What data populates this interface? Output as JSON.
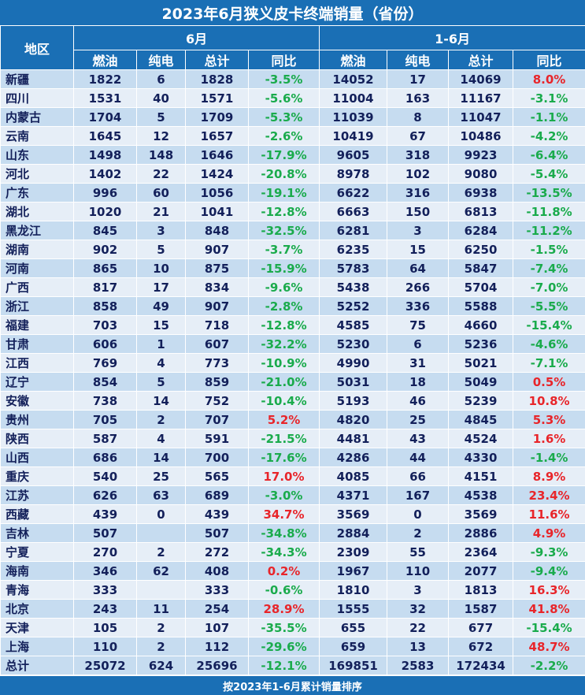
{
  "title": "2023年6月狭义皮卡终端销量（省份）",
  "header": {
    "region": "地区",
    "june": "6月",
    "ytd": "1-6月",
    "cols": [
      "燃油",
      "纯电",
      "总计",
      "同比",
      "燃油",
      "纯电",
      "总计",
      "同比"
    ]
  },
  "colors": {
    "header_bg": "#1a6fb5",
    "band_dark": "#c6dcf0",
    "band_light": "#e6eef7",
    "text": "#13205a",
    "negative": "#1aab4c",
    "positive": "#e8252a"
  },
  "rows": [
    {
      "region": "新疆",
      "jun_fuel": "1822",
      "jun_ev": "6",
      "jun_total": "1828",
      "jun_yoy": "-3.5%",
      "ytd_fuel": "14052",
      "ytd_ev": "17",
      "ytd_total": "14069",
      "ytd_yoy": "8.0%"
    },
    {
      "region": "四川",
      "jun_fuel": "1531",
      "jun_ev": "40",
      "jun_total": "1571",
      "jun_yoy": "-5.6%",
      "ytd_fuel": "11004",
      "ytd_ev": "163",
      "ytd_total": "11167",
      "ytd_yoy": "-3.1%"
    },
    {
      "region": "内蒙古",
      "jun_fuel": "1704",
      "jun_ev": "5",
      "jun_total": "1709",
      "jun_yoy": "-5.3%",
      "ytd_fuel": "11039",
      "ytd_ev": "8",
      "ytd_total": "11047",
      "ytd_yoy": "-1.1%"
    },
    {
      "region": "云南",
      "jun_fuel": "1645",
      "jun_ev": "12",
      "jun_total": "1657",
      "jun_yoy": "-2.6%",
      "ytd_fuel": "10419",
      "ytd_ev": "67",
      "ytd_total": "10486",
      "ytd_yoy": "-4.2%"
    },
    {
      "region": "山东",
      "jun_fuel": "1498",
      "jun_ev": "148",
      "jun_total": "1646",
      "jun_yoy": "-17.9%",
      "ytd_fuel": "9605",
      "ytd_ev": "318",
      "ytd_total": "9923",
      "ytd_yoy": "-6.4%"
    },
    {
      "region": "河北",
      "jun_fuel": "1402",
      "jun_ev": "22",
      "jun_total": "1424",
      "jun_yoy": "-20.8%",
      "ytd_fuel": "8978",
      "ytd_ev": "102",
      "ytd_total": "9080",
      "ytd_yoy": "-5.4%"
    },
    {
      "region": "广东",
      "jun_fuel": "996",
      "jun_ev": "60",
      "jun_total": "1056",
      "jun_yoy": "-19.1%",
      "ytd_fuel": "6622",
      "ytd_ev": "316",
      "ytd_total": "6938",
      "ytd_yoy": "-13.5%"
    },
    {
      "region": "湖北",
      "jun_fuel": "1020",
      "jun_ev": "21",
      "jun_total": "1041",
      "jun_yoy": "-12.8%",
      "ytd_fuel": "6663",
      "ytd_ev": "150",
      "ytd_total": "6813",
      "ytd_yoy": "-11.8%"
    },
    {
      "region": "黑龙江",
      "jun_fuel": "845",
      "jun_ev": "3",
      "jun_total": "848",
      "jun_yoy": "-32.5%",
      "ytd_fuel": "6281",
      "ytd_ev": "3",
      "ytd_total": "6284",
      "ytd_yoy": "-11.2%"
    },
    {
      "region": "湖南",
      "jun_fuel": "902",
      "jun_ev": "5",
      "jun_total": "907",
      "jun_yoy": "-3.7%",
      "ytd_fuel": "6235",
      "ytd_ev": "15",
      "ytd_total": "6250",
      "ytd_yoy": "-1.5%"
    },
    {
      "region": "河南",
      "jun_fuel": "865",
      "jun_ev": "10",
      "jun_total": "875",
      "jun_yoy": "-15.9%",
      "ytd_fuel": "5783",
      "ytd_ev": "64",
      "ytd_total": "5847",
      "ytd_yoy": "-7.4%"
    },
    {
      "region": "广西",
      "jun_fuel": "817",
      "jun_ev": "17",
      "jun_total": "834",
      "jun_yoy": "-9.6%",
      "ytd_fuel": "5438",
      "ytd_ev": "266",
      "ytd_total": "5704",
      "ytd_yoy": "-7.0%"
    },
    {
      "region": "浙江",
      "jun_fuel": "858",
      "jun_ev": "49",
      "jun_total": "907",
      "jun_yoy": "-2.8%",
      "ytd_fuel": "5252",
      "ytd_ev": "336",
      "ytd_total": "5588",
      "ytd_yoy": "-5.5%"
    },
    {
      "region": "福建",
      "jun_fuel": "703",
      "jun_ev": "15",
      "jun_total": "718",
      "jun_yoy": "-12.8%",
      "ytd_fuel": "4585",
      "ytd_ev": "75",
      "ytd_total": "4660",
      "ytd_yoy": "-15.4%"
    },
    {
      "region": "甘肃",
      "jun_fuel": "606",
      "jun_ev": "1",
      "jun_total": "607",
      "jun_yoy": "-32.2%",
      "ytd_fuel": "5230",
      "ytd_ev": "6",
      "ytd_total": "5236",
      "ytd_yoy": "-4.6%"
    },
    {
      "region": "江西",
      "jun_fuel": "769",
      "jun_ev": "4",
      "jun_total": "773",
      "jun_yoy": "-10.9%",
      "ytd_fuel": "4990",
      "ytd_ev": "31",
      "ytd_total": "5021",
      "ytd_yoy": "-7.1%"
    },
    {
      "region": "辽宁",
      "jun_fuel": "854",
      "jun_ev": "5",
      "jun_total": "859",
      "jun_yoy": "-21.0%",
      "ytd_fuel": "5031",
      "ytd_ev": "18",
      "ytd_total": "5049",
      "ytd_yoy": "0.5%"
    },
    {
      "region": "安徽",
      "jun_fuel": "738",
      "jun_ev": "14",
      "jun_total": "752",
      "jun_yoy": "-10.4%",
      "ytd_fuel": "5193",
      "ytd_ev": "46",
      "ytd_total": "5239",
      "ytd_yoy": "10.8%"
    },
    {
      "region": "贵州",
      "jun_fuel": "705",
      "jun_ev": "2",
      "jun_total": "707",
      "jun_yoy": "5.2%",
      "ytd_fuel": "4820",
      "ytd_ev": "25",
      "ytd_total": "4845",
      "ytd_yoy": "5.3%"
    },
    {
      "region": "陕西",
      "jun_fuel": "587",
      "jun_ev": "4",
      "jun_total": "591",
      "jun_yoy": "-21.5%",
      "ytd_fuel": "4481",
      "ytd_ev": "43",
      "ytd_total": "4524",
      "ytd_yoy": "1.6%"
    },
    {
      "region": "山西",
      "jun_fuel": "686",
      "jun_ev": "14",
      "jun_total": "700",
      "jun_yoy": "-17.6%",
      "ytd_fuel": "4286",
      "ytd_ev": "44",
      "ytd_total": "4330",
      "ytd_yoy": "-1.4%"
    },
    {
      "region": "重庆",
      "jun_fuel": "540",
      "jun_ev": "25",
      "jun_total": "565",
      "jun_yoy": "17.0%",
      "ytd_fuel": "4085",
      "ytd_ev": "66",
      "ytd_total": "4151",
      "ytd_yoy": "8.9%"
    },
    {
      "region": "江苏",
      "jun_fuel": "626",
      "jun_ev": "63",
      "jun_total": "689",
      "jun_yoy": "-3.0%",
      "ytd_fuel": "4371",
      "ytd_ev": "167",
      "ytd_total": "4538",
      "ytd_yoy": "23.4%"
    },
    {
      "region": "西藏",
      "jun_fuel": "439",
      "jun_ev": "0",
      "jun_total": "439",
      "jun_yoy": "34.7%",
      "ytd_fuel": "3569",
      "ytd_ev": "0",
      "ytd_total": "3569",
      "ytd_yoy": "11.6%"
    },
    {
      "region": "吉林",
      "jun_fuel": "507",
      "jun_ev": "",
      "jun_total": "507",
      "jun_yoy": "-34.8%",
      "ytd_fuel": "2884",
      "ytd_ev": "2",
      "ytd_total": "2886",
      "ytd_yoy": "4.9%"
    },
    {
      "region": "宁夏",
      "jun_fuel": "270",
      "jun_ev": "2",
      "jun_total": "272",
      "jun_yoy": "-34.3%",
      "ytd_fuel": "2309",
      "ytd_ev": "55",
      "ytd_total": "2364",
      "ytd_yoy": "-9.3%"
    },
    {
      "region": "海南",
      "jun_fuel": "346",
      "jun_ev": "62",
      "jun_total": "408",
      "jun_yoy": "0.2%",
      "ytd_fuel": "1967",
      "ytd_ev": "110",
      "ytd_total": "2077",
      "ytd_yoy": "-9.4%"
    },
    {
      "region": "青海",
      "jun_fuel": "333",
      "jun_ev": "",
      "jun_total": "333",
      "jun_yoy": "-0.6%",
      "ytd_fuel": "1810",
      "ytd_ev": "3",
      "ytd_total": "1813",
      "ytd_yoy": "16.3%"
    },
    {
      "region": "北京",
      "jun_fuel": "243",
      "jun_ev": "11",
      "jun_total": "254",
      "jun_yoy": "28.9%",
      "ytd_fuel": "1555",
      "ytd_ev": "32",
      "ytd_total": "1587",
      "ytd_yoy": "41.8%"
    },
    {
      "region": "天津",
      "jun_fuel": "105",
      "jun_ev": "2",
      "jun_total": "107",
      "jun_yoy": "-35.5%",
      "ytd_fuel": "655",
      "ytd_ev": "22",
      "ytd_total": "677",
      "ytd_yoy": "-15.4%"
    },
    {
      "region": "上海",
      "jun_fuel": "110",
      "jun_ev": "2",
      "jun_total": "112",
      "jun_yoy": "-29.6%",
      "ytd_fuel": "659",
      "ytd_ev": "13",
      "ytd_total": "672",
      "ytd_yoy": "48.7%"
    }
  ],
  "total": {
    "region": "总计",
    "jun_fuel": "25072",
    "jun_ev": "624",
    "jun_total": "25696",
    "jun_yoy": "-12.1%",
    "ytd_fuel": "169851",
    "ytd_ev": "2583",
    "ytd_total": "172434",
    "ytd_yoy": "-2.2%"
  },
  "footer": "按2023年1-6月累计销量排序"
}
